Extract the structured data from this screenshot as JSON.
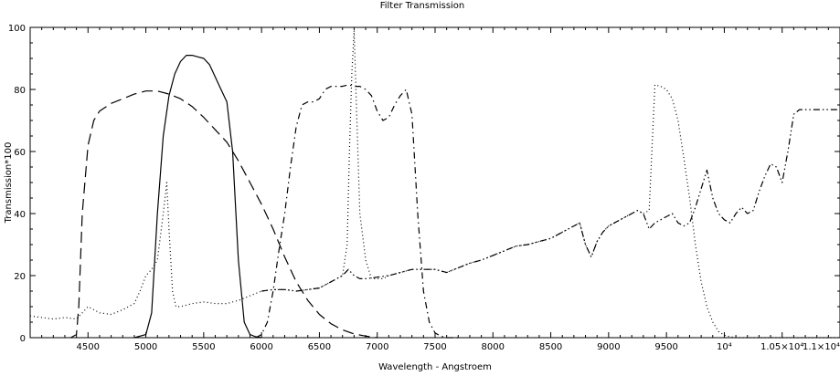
{
  "chart_data": {
    "type": "line",
    "title": "Filter Transmission",
    "xlabel": "Wavelength - Angstroem",
    "ylabel": "Transmission*100",
    "xlim": [
      4000,
      11000
    ],
    "ylim": [
      0,
      100
    ],
    "grid": false,
    "xticks": [
      {
        "value": 4500,
        "label": "4500"
      },
      {
        "value": 5000,
        "label": "5000"
      },
      {
        "value": 5500,
        "label": "5500"
      },
      {
        "value": 6000,
        "label": "6000"
      },
      {
        "value": 6500,
        "label": "6500"
      },
      {
        "value": 7000,
        "label": "7000"
      },
      {
        "value": 7500,
        "label": "7500"
      },
      {
        "value": 8000,
        "label": "8000"
      },
      {
        "value": 8500,
        "label": "8500"
      },
      {
        "value": 9000,
        "label": "9000"
      },
      {
        "value": 9500,
        "label": "9500"
      },
      {
        "value": 10000,
        "label": "10⁴"
      },
      {
        "value": 10500,
        "label": "1.05×10⁴"
      },
      {
        "value": 11000,
        "label": "1.1×10⁴"
      }
    ],
    "yticks": [
      {
        "value": 0,
        "label": "0"
      },
      {
        "value": 20,
        "label": "20"
      },
      {
        "value": 40,
        "label": "40"
      },
      {
        "value": 60,
        "label": "60"
      },
      {
        "value": 80,
        "label": "80"
      },
      {
        "value": 100,
        "label": "100"
      }
    ],
    "series": [
      {
        "style": "solid",
        "x": [
          4900,
          5000,
          5050,
          5100,
          5150,
          5200,
          5250,
          5300,
          5350,
          5400,
          5450,
          5500,
          5550,
          5600,
          5650,
          5700,
          5750,
          5800,
          5850,
          5900,
          5950,
          6000
        ],
        "y": [
          0,
          1,
          8,
          40,
          65,
          78,
          85,
          89,
          91,
          91,
          90.5,
          90,
          88,
          84,
          80,
          76,
          60,
          25,
          5,
          1,
          0.3,
          0
        ]
      },
      {
        "style": "dashed",
        "x": [
          4350,
          4400,
          4420,
          4450,
          4500,
          4550,
          4600,
          4700,
          4800,
          4900,
          5000,
          5100,
          5200,
          5300,
          5400,
          5500,
          5600,
          5700,
          5800,
          5900,
          6000,
          6100,
          6200,
          6300,
          6400,
          6500,
          6600,
          6700,
          6800,
          6900,
          7000
        ],
        "y": [
          0,
          1,
          10,
          40,
          62,
          70,
          73,
          75.5,
          77,
          78.5,
          79.5,
          79.5,
          78.5,
          77,
          74.5,
          71,
          67,
          63,
          57,
          50,
          43,
          35,
          26,
          18,
          12,
          7.5,
          4.5,
          2.5,
          1.2,
          0.5,
          0
        ]
      },
      {
        "style": "dash-dot",
        "x": [
          5950,
          6000,
          6050,
          6100,
          6150,
          6200,
          6250,
          6300,
          6350,
          6400,
          6450,
          6500,
          6550,
          6600,
          6650,
          6700,
          6750,
          6800,
          6850,
          6900,
          6950,
          7000,
          7050,
          7100,
          7150,
          7200,
          7250,
          7300,
          7350,
          7400,
          7450,
          7500,
          7550,
          7600,
          7700
        ],
        "y": [
          0,
          1,
          5,
          15,
          28,
          40,
          55,
          68,
          75,
          76,
          76,
          77,
          80,
          81,
          81,
          81,
          81.5,
          81,
          81,
          80,
          78,
          73,
          70,
          71,
          75,
          78,
          80,
          72,
          40,
          15,
          5,
          1.5,
          0.5,
          0,
          0
        ]
      },
      {
        "style": "dotted",
        "x": [
          4000,
          4100,
          4200,
          4300,
          4400,
          4450,
          4500,
          4600,
          4700,
          4800,
          4900,
          4950,
          5000,
          5050,
          5100,
          5150,
          5180,
          5200,
          5230,
          5260,
          5300,
          5400,
          5500,
          5600,
          5700,
          5800,
          5900,
          6000,
          6100,
          6200,
          6300,
          6400,
          6500,
          6600,
          6700,
          6740,
          6760,
          6780,
          6800,
          6820,
          6850,
          6900,
          6950,
          7000,
          7050,
          7100,
          7200,
          7300,
          7400,
          7500,
          7600,
          7700,
          7800,
          7900,
          8000,
          8100,
          8200,
          8300,
          8400,
          8500,
          8550,
          8600,
          8650,
          8700,
          8750,
          8800,
          8850,
          8900,
          8950,
          9000,
          9050,
          9100,
          9150,
          9200,
          9250,
          9300,
          9350,
          9400,
          9450,
          9500,
          9550,
          9600,
          9650,
          9700,
          9750,
          9800,
          9850,
          9900,
          9950,
          10000,
          10050,
          10100,
          10150,
          10200,
          10250,
          10300,
          10350,
          10400,
          10450,
          10500,
          10550,
          10600,
          10650,
          10700,
          10750,
          10800,
          10850,
          10900,
          10950,
          11000
        ],
        "y": [
          7,
          6.5,
          6,
          6.5,
          6,
          8,
          10,
          8,
          7.5,
          9,
          11,
          15,
          20,
          22,
          25,
          40,
          50,
          35,
          15,
          10,
          10,
          11,
          11.5,
          11,
          11,
          12,
          13.5,
          15,
          15.5,
          15.5,
          15,
          15.5,
          16,
          18,
          20,
          30,
          60,
          85,
          99,
          75,
          40,
          25,
          19,
          19,
          19,
          20,
          21,
          22,
          22,
          22,
          21,
          22.5,
          24,
          25,
          26.5,
          28,
          29.5,
          30,
          31,
          32,
          33,
          34,
          35,
          36,
          37,
          30,
          26,
          31,
          34,
          36,
          37,
          38,
          39,
          40,
          41,
          40,
          41,
          81.5,
          81,
          80,
          77,
          70,
          58,
          45,
          30,
          18,
          10,
          5,
          2,
          0.8,
          0.3,
          0,
          0,
          0,
          0,
          0,
          0,
          0,
          0,
          0,
          0,
          0,
          0,
          0,
          0,
          0,
          0,
          0,
          0,
          0
        ]
      },
      {
        "style": "dash-dot-dot",
        "x": [
          6000,
          6100,
          6200,
          6300,
          6400,
          6500,
          6600,
          6700,
          6750,
          6800,
          6850,
          6900,
          7000,
          7100,
          7200,
          7300,
          7400,
          7500,
          7600,
          7700,
          7800,
          7900,
          8000,
          8100,
          8200,
          8300,
          8400,
          8500,
          8550,
          8600,
          8650,
          8700,
          8750,
          8800,
          8850,
          8900,
          8950,
          9000,
          9050,
          9100,
          9150,
          9200,
          9250,
          9300,
          9350,
          9400,
          9450,
          9500,
          9550,
          9600,
          9650,
          9700,
          9750,
          9800,
          9850,
          9900,
          9950,
          10000,
          10050,
          10100,
          10150,
          10200,
          10250,
          10300,
          10350,
          10400,
          10450,
          10500,
          10550,
          10600,
          10650,
          10700,
          10750,
          10800,
          10850,
          10900,
          10950,
          11000
        ],
        "y": [
          15,
          15.5,
          15.5,
          15,
          15.5,
          16,
          18,
          20,
          22,
          20,
          19,
          19,
          19.5,
          20,
          21,
          22,
          22,
          22,
          21,
          22.5,
          24,
          25,
          26.5,
          28,
          29.5,
          30,
          31,
          32,
          33,
          34,
          35,
          36,
          37,
          30,
          26,
          31,
          34,
          36,
          37,
          38,
          39,
          40,
          41,
          40,
          35,
          37,
          38,
          39,
          40,
          37,
          36,
          37,
          42,
          48,
          54,
          45,
          40,
          38,
          37,
          40,
          42,
          40,
          41,
          47,
          52,
          56,
          55,
          50,
          60,
          72,
          73.5,
          73.5,
          73.5,
          73.5,
          73.5,
          73.5,
          73.5,
          73.5
        ]
      }
    ]
  }
}
